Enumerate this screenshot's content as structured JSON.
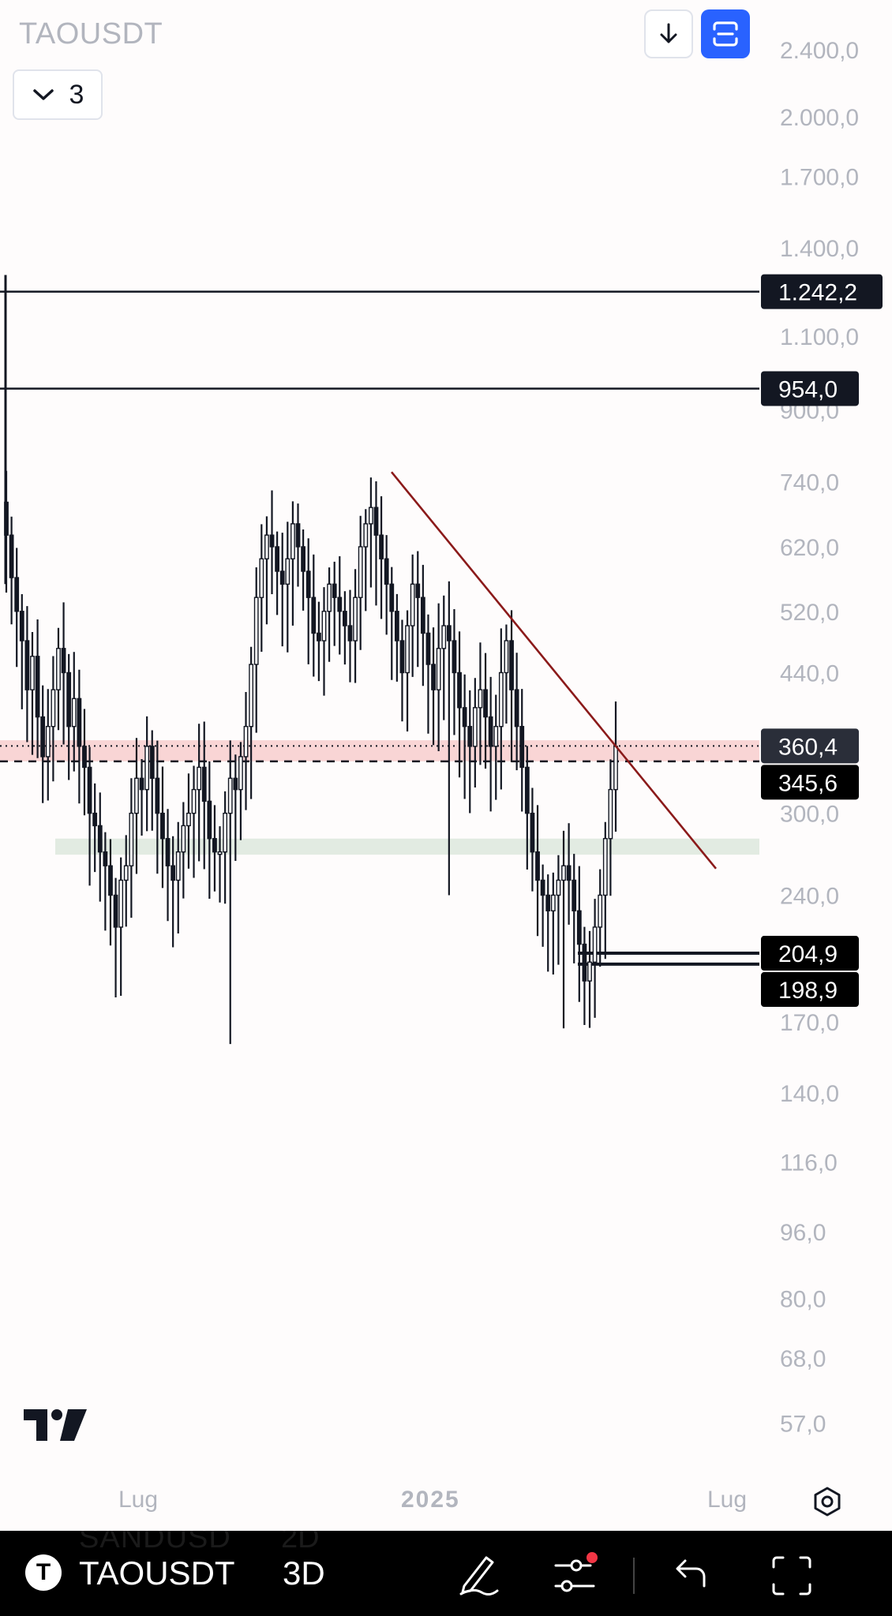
{
  "header": {
    "symbol": "TAOUSDT",
    "legend_count": "3",
    "scroll_button_icon": "arrow-down-icon",
    "autoscale_button_icon": "autoscale-icon"
  },
  "chart_data": {
    "type": "candlestick",
    "symbol": "TAOUSDT",
    "interval": "3D",
    "y_scale": "log",
    "ylim": [
      52,
      2600
    ],
    "y_ticks": [
      "2.400,0",
      "2.000,0",
      "1.700,0",
      "1.400,0",
      "1.100,0",
      "900,0",
      "740,0",
      "620,0",
      "520,0",
      "440,0",
      "300,0",
      "240,0",
      "170,0",
      "140,0",
      "116,0",
      "96,0",
      "80,0",
      "68,0",
      "57,0"
    ],
    "x_labels": [
      "Lug",
      "2025",
      "Lug"
    ],
    "price_labels": [
      {
        "value": "1.242,2",
        "price": 1242.2,
        "style": "horizontal-line",
        "color": "#131722"
      },
      {
        "value": "954,0",
        "price": 954.0,
        "style": "horizontal-line",
        "color": "#131722"
      },
      {
        "value": "360,4",
        "price": 360.4,
        "style": "dotted-line",
        "color": "#2a2e39"
      },
      {
        "value": "345,6",
        "price": 345.6,
        "style": "dashed-line",
        "color": "#000000"
      },
      {
        "value": "204,9",
        "price": 204.9,
        "style": "horizontal-line",
        "color": "#000000"
      },
      {
        "value": "198,9",
        "price": 198.9,
        "style": "horizontal-line",
        "color": "#000000"
      }
    ],
    "zones": [
      {
        "from": 345.6,
        "to": 366,
        "color": "#f9d5d5"
      },
      {
        "from": 268,
        "to": 280,
        "color": "#e2ebe2"
      }
    ],
    "trendline": {
      "from_price": 760,
      "to_price": 258,
      "color": "#8b1a1a"
    },
    "series": [
      {
        "name": "TAOUSDT",
        "color": "#131722",
        "close": [
          640,
          570,
          520,
          480,
          420,
          460,
          390,
          350,
          380,
          420,
          470,
          440,
          380,
          410,
          360,
          340,
          300,
          290,
          270,
          260,
          240,
          220,
          250,
          260,
          300,
          330,
          320,
          360,
          330,
          300,
          280,
          260,
          250,
          270,
          290,
          300,
          320,
          340,
          310,
          280,
          270,
          270,
          300,
          330,
          320,
          350,
          380,
          450,
          540,
          600,
          640,
          620,
          580,
          560,
          600,
          660,
          620,
          580,
          540,
          490,
          480,
          520,
          560,
          540,
          520,
          500,
          480,
          540,
          620,
          660,
          690,
          640,
          600,
          560,
          520,
          480,
          440,
          500,
          560,
          540,
          490,
          450,
          420,
          470,
          500,
          480,
          440,
          400,
          380,
          360,
          400,
          420,
          390,
          360,
          380,
          440,
          480,
          420,
          380,
          340,
          300,
          270,
          250,
          240,
          230,
          240,
          250,
          260,
          250,
          230,
          210,
          190,
          200,
          220,
          240,
          280,
          320,
          360
        ]
      }
    ]
  },
  "bottom_bar": {
    "symbol": "TAOUSDT",
    "interval": "3D",
    "ghost_symbol": "SANDUSD",
    "ghost_interval": "2D"
  }
}
